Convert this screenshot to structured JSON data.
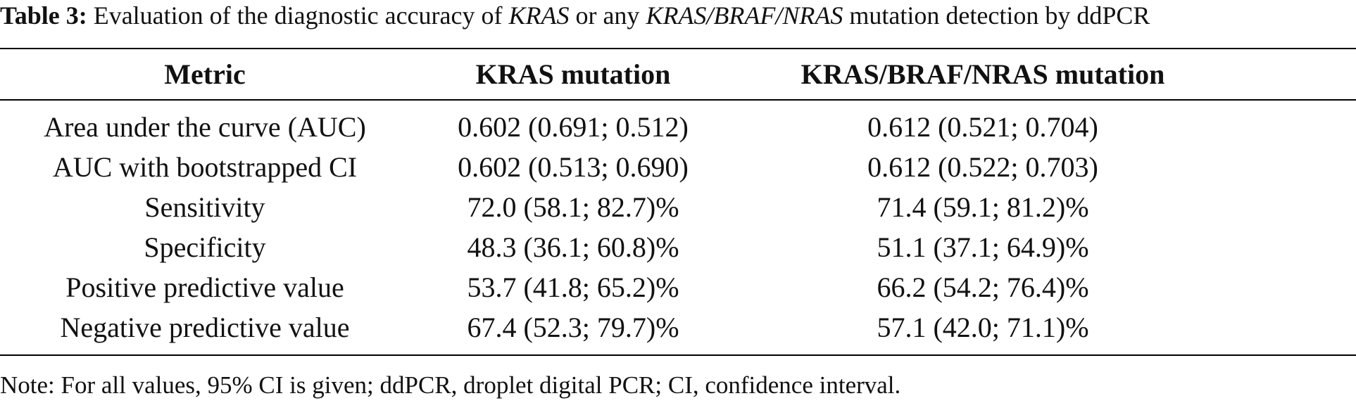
{
  "caption": {
    "label": "Table 3:",
    "text_1": " Evaluation of the diagnostic accuracy of ",
    "gene_1": "KRAS",
    "text_2": " or any ",
    "gene_2": "KRAS/BRAF/NRAS",
    "text_3": " mutation detection by ddPCR"
  },
  "table": {
    "headers": [
      "Metric",
      "KRAS mutation",
      "KRAS/BRAF/NRAS mutation"
    ],
    "rows": [
      {
        "metric": "Area under the curve (AUC)",
        "kras": "0.602 (0.691; 0.512)",
        "kbn": "0.612 (0.521; 0.704)"
      },
      {
        "metric": "AUC with bootstrapped CI",
        "kras": "0.602 (0.513; 0.690)",
        "kbn": "0.612 (0.522; 0.703)"
      },
      {
        "metric": "Sensitivity",
        "kras": "72.0 (58.1; 82.7)%",
        "kbn": "71.4 (59.1; 81.2)%"
      },
      {
        "metric": "Specificity",
        "kras": "48.3 (36.1; 60.8)%",
        "kbn": "51.1 (37.1; 64.9)%"
      },
      {
        "metric": "Positive predictive value",
        "kras": "53.7 (41.8; 65.2)%",
        "kbn": "66.2 (54.2; 76.4)%"
      },
      {
        "metric": "Negative predictive value",
        "kras": "67.4 (52.3; 79.7)%",
        "kbn": "57.1 (42.0; 71.1)%"
      }
    ]
  },
  "note": "Note: For all values, 95% CI is given; ddPCR, droplet digital PCR; CI, confidence interval."
}
